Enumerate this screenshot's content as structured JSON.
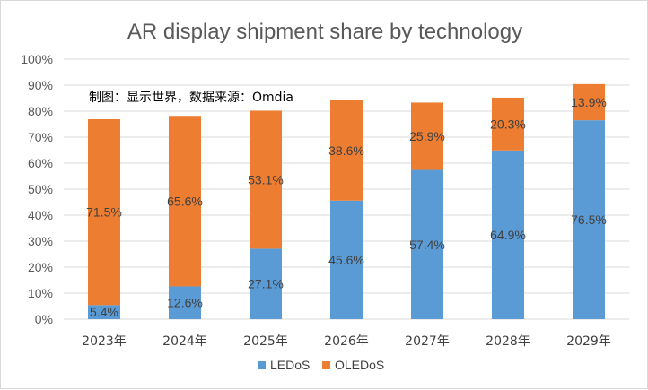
{
  "chart_data": {
    "type": "bar",
    "stacked": true,
    "title": "AR display shipment share by technology",
    "annotation": "制图：显示世界，数据来源：Omdia",
    "categories": [
      "2023年",
      "2024年",
      "2025年",
      "2026年",
      "2027年",
      "2028年",
      "2029年"
    ],
    "series": [
      {
        "name": "LEDoS",
        "color": "#5b9bd5",
        "values": [
          5.4,
          12.6,
          27.1,
          45.6,
          57.4,
          64.9,
          76.5
        ],
        "labels": [
          "5.4%",
          "12.6%",
          "27.1%",
          "45.6%",
          "57.4%",
          "64.9%",
          "76.5%"
        ]
      },
      {
        "name": "OLEDoS",
        "color": "#ed7d31",
        "values": [
          71.5,
          65.6,
          53.1,
          38.6,
          25.9,
          20.3,
          13.9
        ],
        "labels": [
          "71.5%",
          "65.6%",
          "53.1%",
          "38.6%",
          "25.9%",
          "20.3%",
          "13.9%"
        ]
      }
    ],
    "ylim": [
      0,
      100
    ],
    "yticks": [
      "0%",
      "10%",
      "20%",
      "30%",
      "40%",
      "50%",
      "60%",
      "70%",
      "80%",
      "90%",
      "100%"
    ],
    "grid": true,
    "legend_position": "bottom"
  }
}
